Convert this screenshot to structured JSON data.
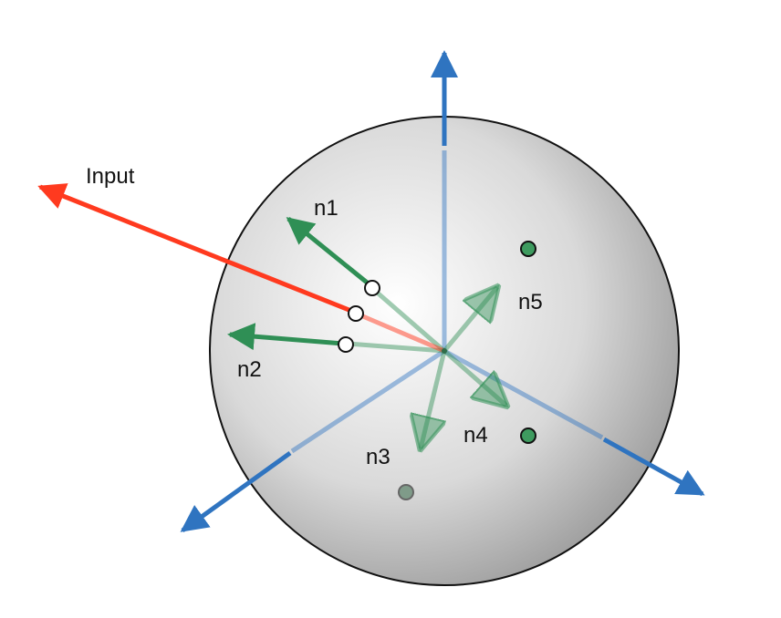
{
  "labels": {
    "input": "Input",
    "n1": "n1",
    "n2": "n2",
    "n3": "n3",
    "n4": "n4",
    "n5": "n5"
  },
  "colors": {
    "axis_blue": "#2f74c0",
    "input_red": "#ff3a1f",
    "neuron_green": "#2f8f55",
    "sphere_light": "#ffffff",
    "sphere_dark": "#8e8e8e"
  }
}
